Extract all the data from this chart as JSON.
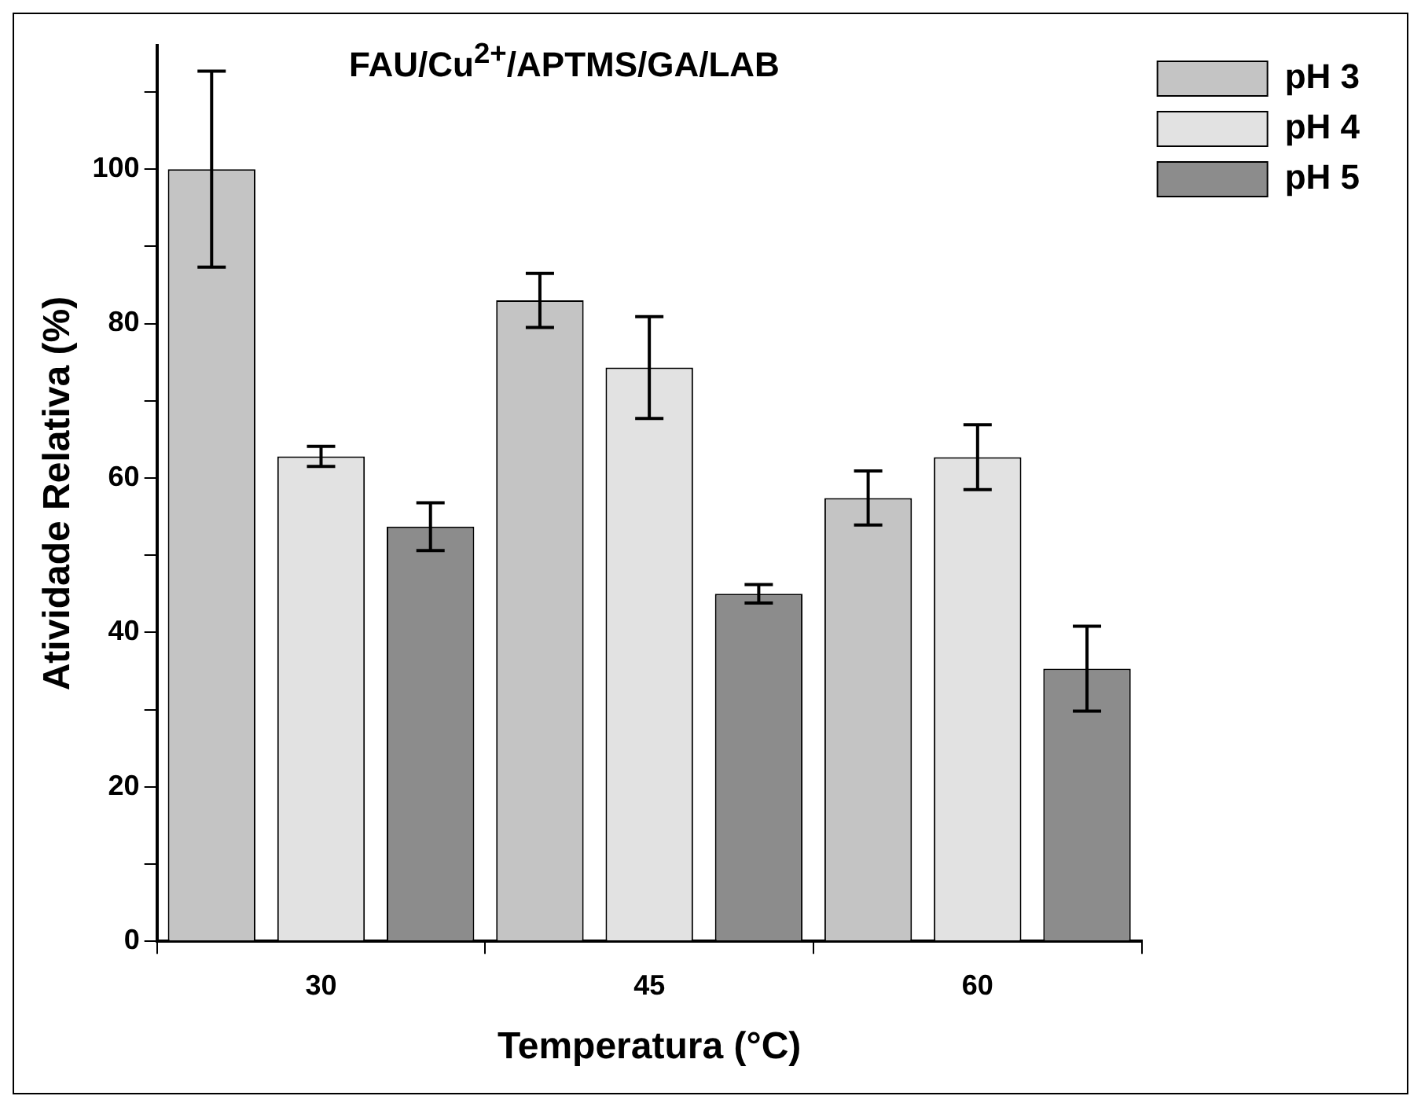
{
  "chart_data": {
    "type": "bar",
    "title": "FAU/Cu$^{2+}$/APTMS/GA/LAB",
    "xlabel": "Temperatura (°C)",
    "ylabel": "Atividade Relativa (%)",
    "categories": [
      "30",
      "45",
      "60"
    ],
    "series": [
      {
        "name": "pH 3",
        "color": "#c4c4c4",
        "values": [
          100,
          83,
          57.4
        ],
        "errors": [
          12.7,
          3.5,
          3.5
        ]
      },
      {
        "name": "pH 4",
        "color": "#e2e2e2",
        "values": [
          62.8,
          74.3,
          62.7
        ],
        "errors": [
          1.3,
          6.6,
          4.2
        ]
      },
      {
        "name": "pH 5",
        "color": "#8c8c8c",
        "values": [
          53.7,
          45,
          35.3
        ],
        "errors": [
          3.1,
          1.2,
          5.5
        ]
      }
    ],
    "ylim": [
      0,
      116
    ],
    "yticks": [
      0,
      {
        "value": 10,
        "label": null
      },
      20,
      {
        "value": 30,
        "label": null
      },
      40,
      {
        "value": 50,
        "label": null
      },
      60,
      {
        "value": 70,
        "label": null
      },
      80,
      {
        "value": 90,
        "label": null
      },
      100,
      {
        "value": 110,
        "label": null
      }
    ],
    "grid": false,
    "legend": "top right"
  }
}
